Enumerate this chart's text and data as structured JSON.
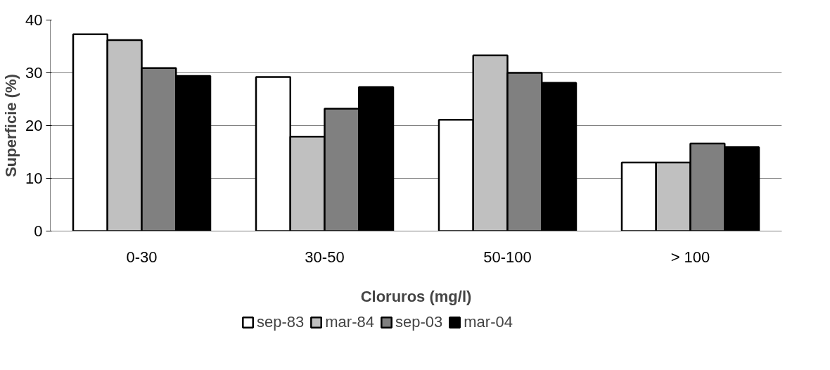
{
  "chart_data": {
    "type": "bar",
    "xlabel": "Cloruros (mg/l)",
    "ylabel": "Superficie (%)",
    "categories": [
      "0-30",
      "30-50",
      "50-100",
      "> 100"
    ],
    "series": [
      {
        "name": "sep-83",
        "color": "#ffffff",
        "values": [
          37.3,
          29.2,
          21.1,
          13.0
        ]
      },
      {
        "name": "mar-84",
        "color": "#c0c0c0",
        "values": [
          36.2,
          17.9,
          33.3,
          13.0
        ]
      },
      {
        "name": "sep-03",
        "color": "#808080",
        "values": [
          30.9,
          23.2,
          30.0,
          16.6
        ]
      },
      {
        "name": "mar-04",
        "color": "#000000",
        "values": [
          29.4,
          27.3,
          28.1,
          15.9
        ]
      }
    ],
    "ylim": [
      0,
      40
    ],
    "yticks": [
      0,
      10,
      20,
      30,
      40
    ],
    "grid": "y",
    "legend": "bottom"
  }
}
